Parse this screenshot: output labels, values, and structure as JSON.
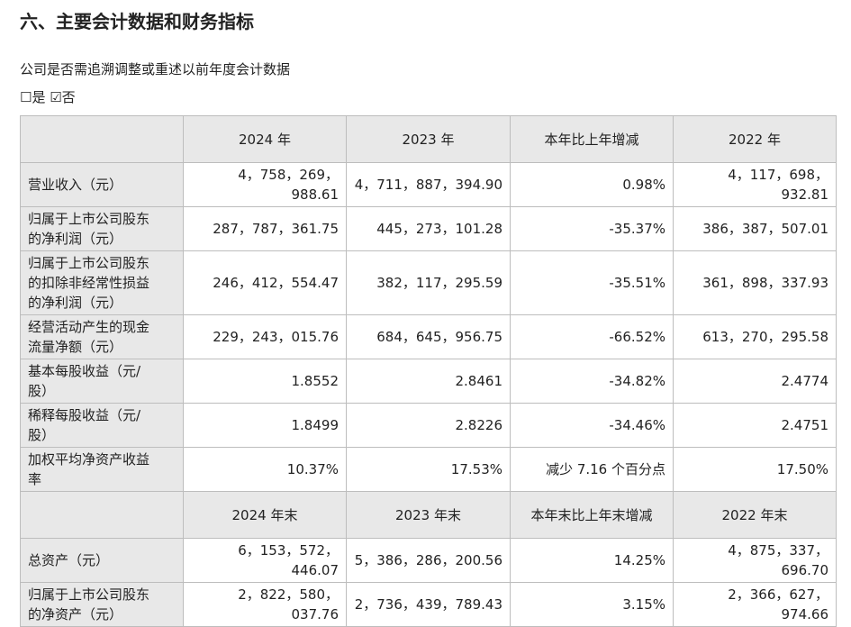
{
  "header": {
    "title": "六、主要会计数据和财务指标",
    "question": "公司是否需追溯调整或重述以前年度会计数据",
    "option_yes": "☐是",
    "option_no": "☑否"
  },
  "table": {
    "sections": [
      {
        "columns": [
          "2024 年",
          "2023 年",
          "本年比上年增减",
          "2022 年"
        ],
        "rows": [
          [
            "营业收入（元）",
            "4，758，269，988.61",
            "4，711，887，394.90",
            "0.98%",
            "4，117，698，932.81"
          ],
          [
            "归属于上市公司股东的净利润（元）",
            "287，787，361.75",
            "445，273，101.28",
            "-35.37%",
            "386，387，507.01"
          ],
          [
            "归属于上市公司股东的扣除非经常性损益的净利润（元）",
            "246，412，554.47",
            "382，117，295.59",
            "-35.51%",
            "361，898，337.93"
          ],
          [
            "经营活动产生的现金流量净额（元）",
            "229，243，015.76",
            "684，645，956.75",
            "-66.52%",
            "613，270，295.58"
          ],
          [
            "基本每股收益（元/股）",
            "1.8552",
            "2.8461",
            "-34.82%",
            "2.4774"
          ],
          [
            "稀释每股收益（元/股）",
            "1.8499",
            "2.8226",
            "-34.46%",
            "2.4751"
          ],
          [
            "加权平均净资产收益率",
            "10.37%",
            "17.53%",
            "减少 7.16 个百分点",
            "17.50%"
          ]
        ]
      },
      {
        "columns": [
          "2024 年末",
          "2023 年末",
          "本年末比上年末增减",
          "2022 年末"
        ],
        "rows": [
          [
            "总资产（元）",
            "6，153，572，446.07",
            "5，386，286，200.56",
            "14.25%",
            "4，875，337，696.70"
          ],
          [
            "归属于上市公司股东的净资产（元）",
            "2，822，580，037.76",
            "2，736，439，789.43",
            "3.15%",
            "2，366，627，974.66"
          ]
        ]
      }
    ]
  }
}
